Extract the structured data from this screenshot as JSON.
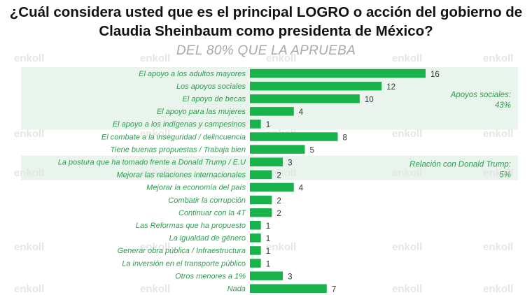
{
  "title_line1": "¿Cuál considera usted que es el principal LOGRO o acción del gobierno de",
  "title_line2": "Claudia Sheinbaum como presidenta de México?",
  "subtitle": "DEL 80% QUE LA APRUEBA",
  "watermark": "enkoll",
  "colors": {
    "bar": "#19b34c",
    "band": "#e8f4ec",
    "label": "#2e9e4f"
  },
  "chart_data": {
    "type": "bar",
    "orientation": "horizontal",
    "categories": [
      "El apoyo a los adultos mayores",
      "Los apoyos sociales",
      "El apoyo de becas",
      "El apoyo para las mujeres",
      "El apoyo a los indígenas y campesinos",
      "El combate a la inseguridad / delincuencia",
      "Tiene buenas propuestas / Trabaja bien",
      "La postura que ha tomado frente a Donald Trump / E.U",
      "Mejorar las relaciones internacionales",
      "Mejorar la economía del país",
      "Combatir la corrupción",
      "Continuar con la 4T",
      "Las Reformas que ha propuesto",
      "La igualdad de género",
      "Generar obra pública / Infraestructura",
      "La inversión en el transporte público",
      "Otros menores a 1%",
      "Nada"
    ],
    "values": [
      16,
      12,
      10,
      4,
      1,
      8,
      5,
      3,
      2,
      4,
      2,
      2,
      1,
      1,
      1,
      1,
      3,
      7
    ],
    "xlim": [
      0,
      16
    ],
    "grid": false,
    "legend": "none",
    "groups": [
      {
        "label_line1": "Apoyos sociales:",
        "label_line2": "43%",
        "first": 0,
        "last": 4
      },
      {
        "label_line1": "Relación con Donald Trump:",
        "label_line2": "5%",
        "first": 7,
        "last": 8
      }
    ]
  }
}
